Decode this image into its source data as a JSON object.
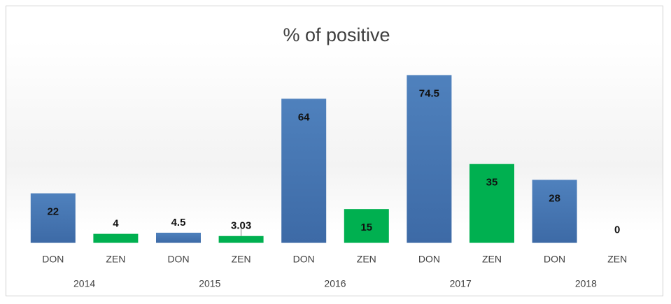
{
  "chart_data": {
    "type": "bar",
    "title": "% of positive",
    "xlabel": "",
    "ylabel": "",
    "ylim": [
      0,
      90
    ],
    "grid": false,
    "legend": "none",
    "groups": [
      "2014",
      "2015",
      "2016",
      "2017",
      "2018"
    ],
    "categories": [
      "DON",
      "ZEN",
      "DON",
      "ZEN",
      "DON",
      "ZEN",
      "DON",
      "ZEN",
      "DON",
      "ZEN"
    ],
    "values": [
      22,
      4,
      4.5,
      3.03,
      64,
      15,
      74.5,
      35,
      28,
      0
    ],
    "value_labels": [
      "22",
      "4",
      "4.5",
      "3.03",
      "64",
      "15",
      "74.5",
      "35",
      "28",
      "0"
    ],
    "colors": {
      "DON": "#4a7ebb",
      "ZEN": "#00b050"
    }
  }
}
